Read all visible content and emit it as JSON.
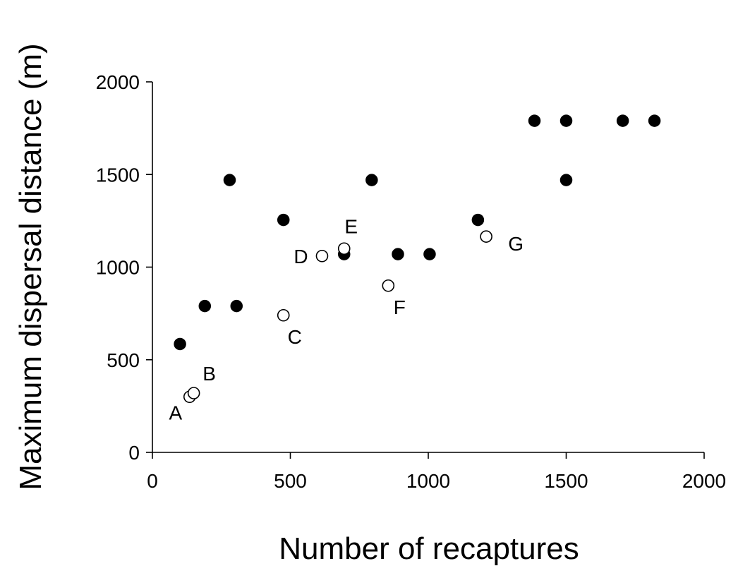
{
  "chart_data": {
    "type": "scatter",
    "xlabel": "Number of recaptures",
    "ylabel": "Maximum dispersal distance (m)",
    "xlim": [
      0,
      2000
    ],
    "ylim": [
      0,
      2000
    ],
    "xticks": [
      0,
      500,
      1000,
      1500,
      2000
    ],
    "yticks": [
      0,
      500,
      1000,
      1500,
      2000
    ],
    "grid": false,
    "series": [
      {
        "marker": "filled-circle",
        "color": "#000000",
        "points": [
          {
            "x": 100,
            "y": 585
          },
          {
            "x": 190,
            "y": 790
          },
          {
            "x": 280,
            "y": 1470
          },
          {
            "x": 305,
            "y": 790
          },
          {
            "x": 475,
            "y": 1255
          },
          {
            "x": 695,
            "y": 1070
          },
          {
            "x": 795,
            "y": 1470
          },
          {
            "x": 890,
            "y": 1070
          },
          {
            "x": 1005,
            "y": 1070
          },
          {
            "x": 1180,
            "y": 1255
          },
          {
            "x": 1385,
            "y": 1790
          },
          {
            "x": 1500,
            "y": 1790
          },
          {
            "x": 1500,
            "y": 1470
          },
          {
            "x": 1705,
            "y": 1790
          },
          {
            "x": 1820,
            "y": 1790
          }
        ]
      },
      {
        "marker": "open-circle",
        "color": "#000000",
        "points": [
          {
            "x": 135,
            "y": 300,
            "label": "A",
            "label_pos": "below-left"
          },
          {
            "x": 150,
            "y": 320,
            "label": "B",
            "label_pos": "above-right"
          },
          {
            "x": 475,
            "y": 740,
            "label": "C",
            "label_pos": "below-right"
          },
          {
            "x": 615,
            "y": 1060,
            "label": "D",
            "label_pos": "left"
          },
          {
            "x": 695,
            "y": 1100,
            "label": "E",
            "label_pos": "above"
          },
          {
            "x": 855,
            "y": 900,
            "label": "F",
            "label_pos": "below-right"
          },
          {
            "x": 1210,
            "y": 1165,
            "label": "G",
            "label_pos": "right"
          }
        ]
      }
    ]
  }
}
